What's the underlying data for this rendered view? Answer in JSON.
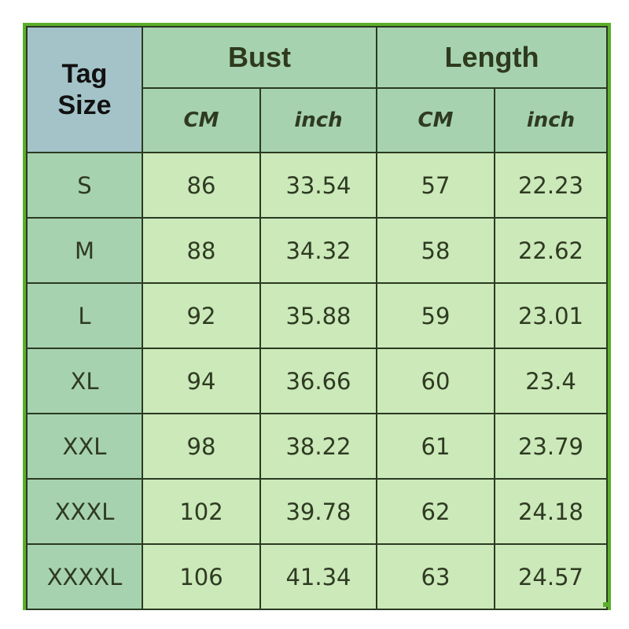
{
  "header": {
    "tag_size_line1": "Tag",
    "tag_size_line2": "Size",
    "bust": "Bust",
    "length": "Length",
    "bust_cm": "CM",
    "bust_inch": "inch",
    "length_cm": "CM",
    "length_inch": "inch"
  },
  "rows": [
    {
      "size": "S",
      "bust_cm": "86",
      "bust_inch": "33.54",
      "length_cm": "57",
      "length_inch": "22.23"
    },
    {
      "size": "M",
      "bust_cm": "88",
      "bust_inch": "34.32",
      "length_cm": "58",
      "length_inch": "22.62"
    },
    {
      "size": "L",
      "bust_cm": "92",
      "bust_inch": "35.88",
      "length_cm": "59",
      "length_inch": "23.01"
    },
    {
      "size": "XL",
      "bust_cm": "94",
      "bust_inch": "36.66",
      "length_cm": "60",
      "length_inch": "23.4"
    },
    {
      "size": "XXL",
      "bust_cm": "98",
      "bust_inch": "38.22",
      "length_cm": "61",
      "length_inch": "23.79"
    },
    {
      "size": "XXXL",
      "bust_cm": "102",
      "bust_inch": "39.78",
      "length_cm": "62",
      "length_inch": "24.18"
    },
    {
      "size": "XXXXL",
      "bust_cm": "106",
      "bust_inch": "41.34",
      "length_cm": "63",
      "length_inch": "24.57"
    }
  ],
  "colors": {
    "border": "#5cae2a",
    "header": "#a6d2b0",
    "tag_header": "#a3c3c8",
    "cell": "#cbe9b9"
  }
}
